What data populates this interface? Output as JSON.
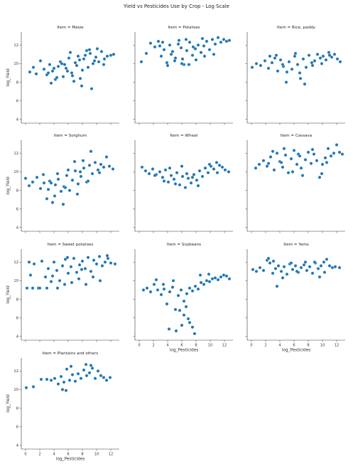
{
  "figure": {
    "title": "Yield vs Pesticides Use by Crop - Log Scale",
    "facet_prefix": "Item = ",
    "xlabel": "log_Pesticides",
    "ylabel": "log_Yield",
    "point_color": "#1f77b4"
  },
  "chart_data": {
    "type": "scatter",
    "xlim": [
      -0.6,
      13.2
    ],
    "ylim": [
      3.6,
      13.4
    ],
    "x_ticks": [
      0,
      2,
      4,
      6,
      8,
      10,
      12
    ],
    "y_ticks": [
      4,
      6,
      8,
      10,
      12
    ],
    "grid": false,
    "shared_axes": true,
    "facets": [
      {
        "item": "Maize",
        "x": [
          0.6,
          1.1,
          1.5,
          2.1,
          2.6,
          3.0,
          3.4,
          3.8,
          4.2,
          4.6,
          4.9,
          5.3,
          5.7,
          6.1,
          6.5,
          6.8,
          7.2,
          7.6,
          8.0,
          8.4,
          8.8,
          9.1,
          9.5,
          9.9,
          10.3,
          10.7,
          11.1,
          11.5,
          12.0,
          12.4,
          3.6,
          4.4,
          5.1,
          5.9,
          6.6,
          7.4,
          7.9,
          8.6,
          9.3,
          10.1,
          4.0,
          5.5,
          7.0,
          8.2,
          9.7,
          3.2,
          6.3,
          9.0,
          7.7,
          11.0
        ],
        "y": [
          9.1,
          9.6,
          8.9,
          10.3,
          9.4,
          8.8,
          9.9,
          9.2,
          8.3,
          9.7,
          10.2,
          8.6,
          9.5,
          10.6,
          9.0,
          8.1,
          9.8,
          10.4,
          9.3,
          10.9,
          9.6,
          11.1,
          10.0,
          10.7,
          10.2,
          11.3,
          10.5,
          10.8,
          10.9,
          11.0,
          7.9,
          8.5,
          10.0,
          9.2,
          8.7,
          10.8,
          7.6,
          11.4,
          7.3,
          11.6,
          9.5,
          9.9,
          10.1,
          10.5,
          10.3,
          9.0,
          11.2,
          11.5,
          8.4,
          9.9
        ]
      },
      {
        "item": "Potatoes",
        "x": [
          0.3,
          1.0,
          1.6,
          2.2,
          2.7,
          3.1,
          3.5,
          3.9,
          4.3,
          4.7,
          5.1,
          5.5,
          5.9,
          6.3,
          6.7,
          7.1,
          7.5,
          7.9,
          8.3,
          8.7,
          9.1,
          9.5,
          9.9,
          10.3,
          10.7,
          11.1,
          11.5,
          11.9,
          12.3,
          12.7,
          4.0,
          5.0,
          6.0,
          7.0,
          8.0,
          5.6,
          6.6,
          3.3,
          9.2,
          10.5,
          4.5,
          7.6,
          2.9,
          8.9,
          6.1
        ],
        "y": [
          10.2,
          11.1,
          12.2,
          11.8,
          12.4,
          10.8,
          11.5,
          10.1,
          12.0,
          11.3,
          10.6,
          12.1,
          11.7,
          9.9,
          11.4,
          12.3,
          10.9,
          11.6,
          12.0,
          11.2,
          11.9,
          12.4,
          11.5,
          12.6,
          12.1,
          12.8,
          12.3,
          12.6,
          12.4,
          12.5,
          9.8,
          10.3,
          10.0,
          9.9,
          10.4,
          12.5,
          12.6,
          12.3,
          10.8,
          11.0,
          11.0,
          11.8,
          11.9,
          12.7,
          10.5
        ]
      },
      {
        "item": "Rice, paddy",
        "x": [
          0.1,
          0.7,
          1.3,
          1.9,
          2.4,
          2.9,
          3.3,
          3.7,
          4.1,
          4.5,
          4.9,
          5.3,
          5.7,
          6.1,
          6.5,
          6.9,
          7.3,
          7.7,
          8.1,
          8.5,
          8.9,
          9.3,
          9.7,
          10.1,
          10.5,
          10.9,
          11.3,
          11.7,
          12.1,
          12.5,
          3.5,
          5.0,
          6.2,
          7.5,
          8.6,
          9.9,
          4.4,
          6.8,
          2.6,
          11.0
        ],
        "y": [
          9.6,
          10.0,
          9.8,
          10.3,
          9.5,
          10.1,
          10.6,
          9.2,
          10.4,
          9.7,
          8.0,
          10.2,
          9.4,
          10.8,
          9.9,
          8.4,
          10.5,
          9.6,
          10.9,
          10.1,
          10.3,
          11.0,
          10.6,
          10.8,
          10.4,
          11.2,
          10.7,
          11.0,
          10.5,
          10.2,
          10.9,
          9.1,
          11.1,
          7.8,
          9.8,
          10.0,
          9.9,
          9.0,
          10.8,
          10.9
        ]
      },
      {
        "item": "Sorghum",
        "x": [
          0.0,
          0.5,
          1.0,
          1.6,
          2.1,
          2.6,
          3.0,
          3.4,
          3.8,
          4.2,
          4.6,
          5.0,
          5.4,
          5.8,
          6.2,
          6.6,
          7.0,
          7.4,
          7.8,
          8.2,
          8.6,
          9.0,
          9.4,
          9.8,
          10.2,
          10.6,
          11.0,
          11.4,
          11.8,
          12.3,
          3.2,
          4.1,
          5.3,
          6.0,
          7.3,
          8.1,
          9.2,
          2.5,
          6.9,
          8.8,
          5.6,
          4.5,
          10.4,
          3.6,
          7.7
        ],
        "y": [
          9.3,
          8.5,
          8.9,
          9.4,
          8.2,
          8.8,
          7.1,
          9.0,
          6.7,
          8.6,
          9.2,
          7.9,
          8.4,
          9.6,
          8.0,
          9.1,
          10.1,
          8.7,
          9.5,
          10.4,
          8.9,
          10.7,
          9.8,
          11.0,
          10.2,
          10.8,
          10.5,
          11.6,
          10.6,
          10.3,
          8.1,
          7.4,
          6.5,
          10.2,
          7.6,
          11.2,
          12.2,
          9.7,
          11.1,
          9.0,
          8.3,
          9.8,
          9.9,
          8.8,
          10.0
        ]
      },
      {
        "item": "Wheat",
        "x": [
          0.4,
          0.9,
          1.4,
          1.9,
          2.4,
          2.9,
          3.3,
          3.7,
          4.1,
          4.5,
          4.9,
          5.3,
          5.7,
          6.1,
          6.5,
          6.9,
          7.3,
          7.7,
          8.1,
          8.5,
          8.9,
          9.3,
          9.7,
          10.1,
          10.5,
          10.9,
          11.3,
          11.7,
          12.1,
          12.6,
          3.5,
          5.1,
          6.7,
          8.3,
          9.9,
          4.3,
          7.5,
          2.2,
          11.0,
          6.0
        ],
        "y": [
          10.5,
          10.1,
          9.8,
          10.3,
          9.7,
          10.0,
          9.4,
          10.2,
          8.9,
          9.6,
          9.2,
          9.9,
          8.6,
          9.5,
          8.3,
          9.3,
          8.8,
          9.7,
          9.1,
          10.1,
          9.5,
          10.4,
          9.9,
          10.6,
          10.3,
          11.0,
          10.7,
          10.5,
          10.2,
          10.0,
          9.0,
          8.7,
          9.8,
          8.5,
          10.8,
          10.4,
          9.4,
          9.6,
          9.9,
          10.6
        ]
      },
      {
        "item": "Cassava",
        "x": [
          0.6,
          1.1,
          1.7,
          2.2,
          2.7,
          3.2,
          3.6,
          4.0,
          4.4,
          4.8,
          5.2,
          5.6,
          6.0,
          6.4,
          6.8,
          7.2,
          7.6,
          8.0,
          8.4,
          8.8,
          9.2,
          9.6,
          10.0,
          10.4,
          10.8,
          11.2,
          11.6,
          12.0,
          12.4,
          12.8,
          3.0,
          4.6,
          5.8,
          7.0,
          8.6,
          9.9,
          4.2,
          6.6,
          2.4,
          10.6
        ],
        "y": [
          10.4,
          10.8,
          11.2,
          10.6,
          11.6,
          10.2,
          12.0,
          11.1,
          10.5,
          11.8,
          9.9,
          11.4,
          12.3,
          10.8,
          11.7,
          9.6,
          11.3,
          12.1,
          10.9,
          11.9,
          11.2,
          9.4,
          10.8,
          11.5,
          12.5,
          11.7,
          12.0,
          12.9,
          12.1,
          11.9,
          12.2,
          12.5,
          10.0,
          10.4,
          12.4,
          9.8,
          11.0,
          11.9,
          10.9,
          11.0
        ]
      },
      {
        "item": "Sweet potatoes",
        "x": [
          0.2,
          0.7,
          1.2,
          1.8,
          2.3,
          2.8,
          3.2,
          3.6,
          4.0,
          4.4,
          4.8,
          5.2,
          5.6,
          6.0,
          6.4,
          6.8,
          7.2,
          7.6,
          8.0,
          8.4,
          8.8,
          9.2,
          9.6,
          10.0,
          10.4,
          10.8,
          11.2,
          11.6,
          12.0,
          12.6,
          1.0,
          2.0,
          3.0,
          4.5,
          5.5,
          6.5,
          7.5,
          8.5,
          9.5,
          10.5,
          3.8,
          5.9,
          7.9,
          0.5,
          11.5
        ],
        "y": [
          9.2,
          10.6,
          11.8,
          9.2,
          12.1,
          10.4,
          11.3,
          9.9,
          12.0,
          11.1,
          10.0,
          11.6,
          12.3,
          10.8,
          11.5,
          12.4,
          10.9,
          11.7,
          12.1,
          11.3,
          12.5,
          11.0,
          12.2,
          11.8,
          12.6,
          11.6,
          12.0,
          12.4,
          11.9,
          11.8,
          9.2,
          9.2,
          9.2,
          9.2,
          9.6,
          9.8,
          10.2,
          9.6,
          10.4,
          10.0,
          10.5,
          12.5,
          11.2,
          12.0,
          12.7
        ]
      },
      {
        "item": "Soybeans",
        "x": [
          0.6,
          1.1,
          1.6,
          2.1,
          2.6,
          3.1,
          3.5,
          3.9,
          4.3,
          4.7,
          5.1,
          5.5,
          5.9,
          6.3,
          6.7,
          7.1,
          7.5,
          7.9,
          8.3,
          8.7,
          9.1,
          9.5,
          9.9,
          10.3,
          10.7,
          11.1,
          11.5,
          11.9,
          12.3,
          12.7,
          4.2,
          5.2,
          6.0,
          6.6,
          7.1,
          7.5,
          7.8,
          6.3,
          5.7,
          6.9,
          3.4,
          4.8,
          8.6,
          9.8,
          2.4
        ],
        "y": [
          9.0,
          9.2,
          8.8,
          9.6,
          9.0,
          8.5,
          9.1,
          7.5,
          8.8,
          9.3,
          6.9,
          8.4,
          9.0,
          7.8,
          8.6,
          9.2,
          8.9,
          9.4,
          9.1,
          9.8,
          9.6,
          10.0,
          9.9,
          10.2,
          10.3,
          10.1,
          10.4,
          10.6,
          10.5,
          10.2,
          4.8,
          4.6,
          5.2,
          7.2,
          5.5,
          5.0,
          4.3,
          6.3,
          6.8,
          5.9,
          9.6,
          10.0,
          10.6,
          10.7,
          10.1
        ]
      },
      {
        "item": "Yams",
        "x": [
          0.2,
          0.7,
          1.2,
          1.7,
          2.2,
          2.6,
          3.0,
          3.4,
          3.8,
          4.2,
          4.6,
          5.0,
          5.4,
          5.8,
          6.2,
          6.6,
          7.0,
          7.4,
          7.8,
          8.2,
          8.6,
          9.0,
          9.4,
          9.8,
          10.2,
          10.6,
          11.0,
          11.4,
          11.8,
          12.4,
          2.4,
          3.1,
          4.4,
          6.4,
          8.9,
          10.3,
          3.6,
          5.6,
          7.6,
          9.6
        ],
        "y": [
          11.2,
          11.0,
          11.4,
          11.1,
          12.2,
          11.9,
          10.8,
          11.3,
          11.6,
          11.0,
          11.5,
          10.7,
          11.8,
          11.2,
          11.6,
          10.9,
          11.4,
          11.7,
          11.1,
          11.5,
          10.8,
          11.9,
          11.3,
          11.6,
          12.0,
          12.3,
          11.6,
          11.4,
          11.5,
          11.4,
          12.4,
          12.1,
          10.3,
          11.0,
          12.0,
          10.9,
          9.4,
          11.9,
          12.0,
          10.4
        ]
      },
      {
        "item": "Plantains and others",
        "x": [
          0.1,
          1.1,
          2.2,
          3.0,
          3.6,
          4.1,
          4.6,
          5.0,
          5.4,
          5.8,
          6.2,
          6.6,
          7.0,
          7.4,
          7.8,
          8.2,
          8.6,
          9.0,
          9.4,
          9.8,
          10.2,
          10.6,
          11.0,
          11.4,
          11.9,
          5.2,
          5.7,
          6.4,
          9.2,
          8.5
        ],
        "y": [
          10.2,
          10.3,
          11.1,
          11.1,
          11.0,
          11.2,
          10.6,
          11.4,
          10.8,
          12.2,
          11.0,
          11.6,
          10.9,
          11.7,
          11.2,
          12.1,
          11.5,
          11.8,
          12.3,
          11.2,
          12.0,
          11.5,
          11.3,
          11.0,
          11.3,
          10.0,
          9.9,
          12.5,
          12.6,
          12.7
        ]
      }
    ]
  }
}
